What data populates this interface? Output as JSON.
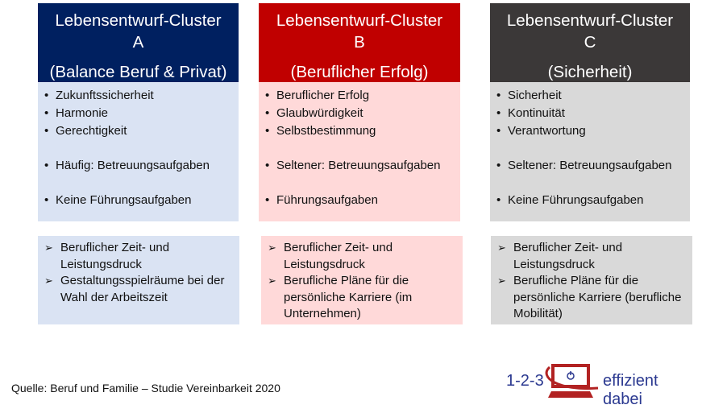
{
  "clusters": [
    {
      "title": "Lebensentwurf-Cluster",
      "letter": "A",
      "subtitle": "(Balance Beruf & Privat)",
      "header_color": "#002060",
      "body_color": "#dae3f3",
      "items": [
        "Zukunftssicherheit",
        "Harmonie",
        "Gerechtigkeit",
        "Häufig: Betreuungsaufgaben",
        "Keine Führungsaufgaben"
      ],
      "factors": [
        "Beruflicher Zeit- und Leistungsdruck",
        "Gestaltungsspielräume bei der Wahl der Arbeitszeit"
      ]
    },
    {
      "title": "Lebensentwurf-Cluster",
      "letter": "B",
      "subtitle": "(Beruflicher Erfolg)",
      "header_color": "#c00000",
      "body_color": "#ffd9d9",
      "items": [
        "Beruflicher Erfolg",
        "Glaubwürdigkeit",
        "Selbstbestimmung",
        "Seltener: Betreuungsaufgaben",
        "Führungsaufgaben"
      ],
      "factors": [
        "Beruflicher Zeit- und Leistungsdruck",
        "Berufliche Pläne für die persönliche Karriere (im Unternehmen)"
      ]
    },
    {
      "title": "Lebensentwurf-Cluster",
      "letter": "C",
      "subtitle": "(Sicherheit)",
      "header_color": "#3b3838",
      "body_color": "#d9d9d9",
      "items": [
        "Sicherheit",
        "Kontinuität",
        "Verantwortung",
        "Seltener: Betreuungsaufgaben",
        "Keine Führungsaufgaben"
      ],
      "factors": [
        "Beruflicher Zeit- und Leistungsdruck",
        "Berufliche Pläne für die persönliche Karriere (berufliche Mobilität)"
      ]
    }
  ],
  "source": "Quelle: Beruf und Familie – Studie Vereinbarkeit 2020",
  "logo": {
    "left": "1-2-3",
    "right": "effizient dabei",
    "icon": "computer-power-icon"
  }
}
